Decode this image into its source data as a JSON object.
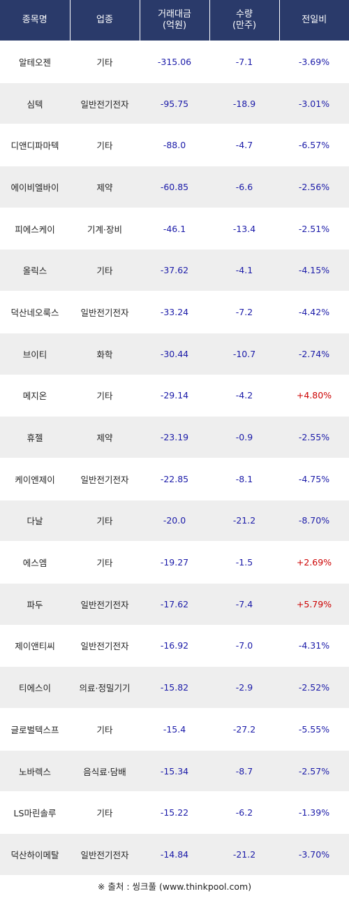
{
  "table": {
    "headers": [
      "종목명",
      "업종",
      "거래대금\n(억원)",
      "수량\n(만주)",
      "전일비"
    ],
    "rows": [
      {
        "name": "알테오젠",
        "sector": "기타",
        "amount": "-315.06",
        "volume": "-7.1",
        "change": "-3.69%"
      },
      {
        "name": "심텍",
        "sector": "일반전기전자",
        "amount": "-95.75",
        "volume": "-18.9",
        "change": "-3.01%"
      },
      {
        "name": "디앤디파마텍",
        "sector": "기타",
        "amount": "-88.0",
        "volume": "-4.7",
        "change": "-6.57%"
      },
      {
        "name": "에이비엘바이",
        "sector": "제약",
        "amount": "-60.85",
        "volume": "-6.6",
        "change": "-2.56%"
      },
      {
        "name": "피에스케이",
        "sector": "기계·장비",
        "amount": "-46.1",
        "volume": "-13.4",
        "change": "-2.51%"
      },
      {
        "name": "올릭스",
        "sector": "기타",
        "amount": "-37.62",
        "volume": "-4.1",
        "change": "-4.15%"
      },
      {
        "name": "덕산네오룩스",
        "sector": "일반전기전자",
        "amount": "-33.24",
        "volume": "-7.2",
        "change": "-4.42%"
      },
      {
        "name": "브이티",
        "sector": "화학",
        "amount": "-30.44",
        "volume": "-10.7",
        "change": "-2.74%"
      },
      {
        "name": "메지온",
        "sector": "기타",
        "amount": "-29.14",
        "volume": "-4.2",
        "change": "+4.80%"
      },
      {
        "name": "휴젤",
        "sector": "제약",
        "amount": "-23.19",
        "volume": "-0.9",
        "change": "-2.55%"
      },
      {
        "name": "케이엔제이",
        "sector": "일반전기전자",
        "amount": "-22.85",
        "volume": "-8.1",
        "change": "-4.75%"
      },
      {
        "name": "다날",
        "sector": "기타",
        "amount": "-20.0",
        "volume": "-21.2",
        "change": "-8.70%"
      },
      {
        "name": "에스엠",
        "sector": "기타",
        "amount": "-19.27",
        "volume": "-1.5",
        "change": "+2.69%"
      },
      {
        "name": "파두",
        "sector": "일반전기전자",
        "amount": "-17.62",
        "volume": "-7.4",
        "change": "+5.79%"
      },
      {
        "name": "제이앤티씨",
        "sector": "일반전기전자",
        "amount": "-16.92",
        "volume": "-7.0",
        "change": "-4.31%"
      },
      {
        "name": "티에스이",
        "sector": "의료·정밀기기",
        "amount": "-15.82",
        "volume": "-2.9",
        "change": "-2.52%"
      },
      {
        "name": "글로벌텍스프",
        "sector": "기타",
        "amount": "-15.4",
        "volume": "-27.2",
        "change": "-5.55%"
      },
      {
        "name": "노바렉스",
        "sector": "음식료·담배",
        "amount": "-15.34",
        "volume": "-8.7",
        "change": "-2.57%"
      },
      {
        "name": "LS마린솔루",
        "sector": "기타",
        "amount": "-15.22",
        "volume": "-6.2",
        "change": "-1.39%"
      },
      {
        "name": "덕산하이메탈",
        "sector": "일반전기전자",
        "amount": "-14.84",
        "volume": "-21.2",
        "change": "-3.70%"
      }
    ]
  },
  "colors": {
    "header_bg": "#2a3a6a",
    "negative": "#1a1aa8",
    "positive": "#cc0000",
    "stripe": "#eeeeee"
  },
  "footer": {
    "source": "※ 출처 : 씽크풀 (www.thinkpool.com)"
  }
}
